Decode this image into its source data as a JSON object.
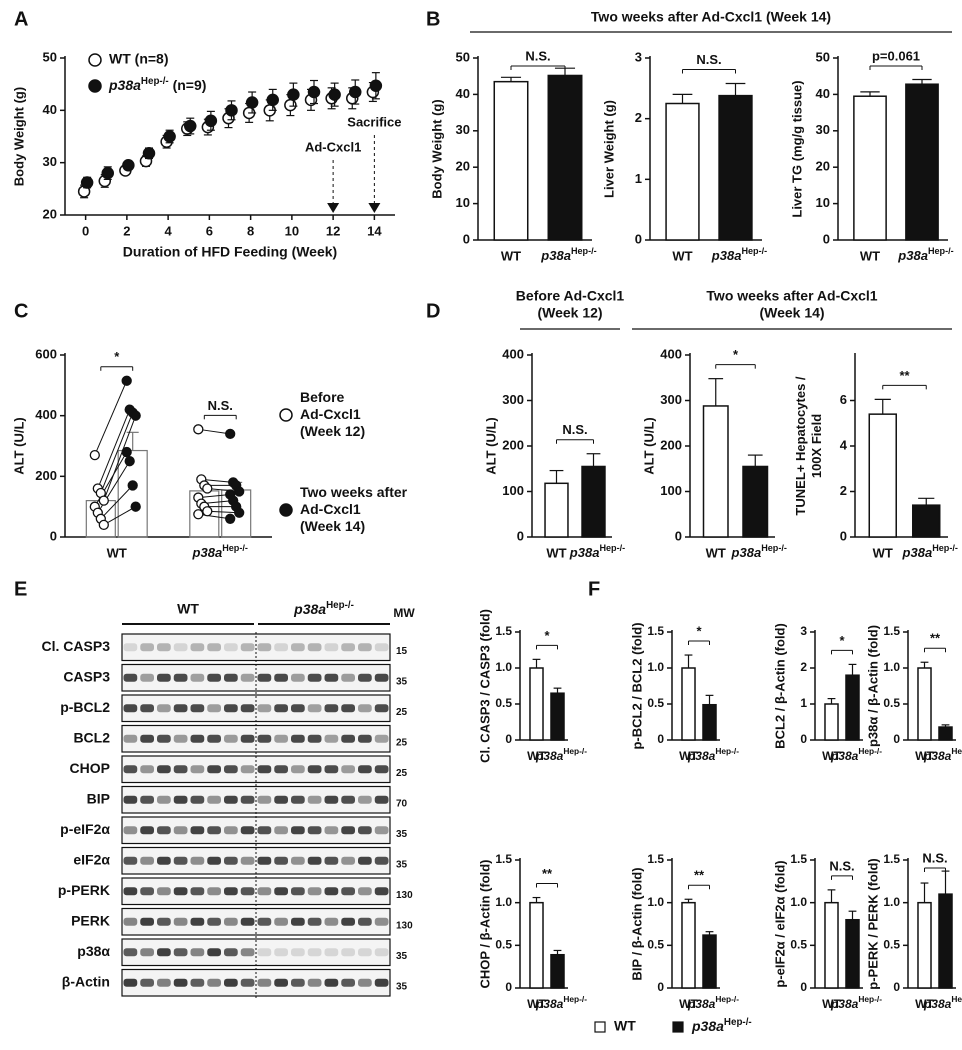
{
  "chart_data": [
    {
      "type": "line",
      "panel": "A",
      "xlabel": "Duration of HFD Feeding (Week)",
      "ylabel": "Body Weight (g)",
      "x": [
        0,
        1,
        2,
        3,
        4,
        5,
        6,
        7,
        8,
        9,
        10,
        11,
        12,
        13,
        14
      ],
      "xlim": [
        -1,
        15
      ],
      "xticks": [
        0,
        2,
        4,
        6,
        8,
        10,
        12,
        14
      ],
      "ylim": [
        20,
        50
      ],
      "yticks": [
        20,
        30,
        40,
        50
      ],
      "series": [
        {
          "name": "WT (n=8)",
          "color": "#ffffff",
          "values": [
            24.5,
            26.5,
            28.5,
            30.3,
            34,
            36.5,
            36.8,
            38.5,
            39.5,
            40,
            41,
            42,
            42.3,
            42.3,
            43.5
          ],
          "errors": [
            1.2,
            1.2,
            0.8,
            1,
            1.2,
            1.3,
            1.5,
            1.8,
            1.8,
            2,
            2,
            2,
            2,
            2,
            1.8
          ]
        },
        {
          "name": {
            "text": "p38a",
            "sup": "Hep-/-",
            "rest": " (n=9)"
          },
          "color": "#111111",
          "values": [
            26.2,
            28,
            29.5,
            31.8,
            35,
            37,
            38,
            40,
            41.5,
            42,
            43,
            43.5,
            43,
            43.5,
            44.7
          ],
          "errors": [
            1,
            1.2,
            0.8,
            1,
            1.2,
            1.5,
            1.8,
            1.8,
            2,
            2,
            2.2,
            2.2,
            2.2,
            2.3,
            2.5
          ]
        }
      ],
      "markers": [
        {
          "x": 12,
          "label": "Ad-Cxcl1"
        },
        {
          "x": 14,
          "label": "Sacrifice"
        }
      ]
    },
    {
      "type": "bar",
      "panel": "B",
      "group_title": "Two weeks after Ad-Cxcl1 (Week 14)",
      "ylabel": "Body Weight (g)",
      "categories": [
        "WT",
        {
          "text": "p38a",
          "sup": "Hep-/-"
        }
      ],
      "colors": [
        "#ffffff",
        "#111111"
      ],
      "values": [
        43.5,
        45.2
      ],
      "errors": [
        1.2,
        2
      ],
      "ylim": [
        0,
        50
      ],
      "yticks": [
        0,
        10,
        20,
        30,
        40,
        50
      ],
      "annotation": "N.S."
    },
    {
      "type": "bar",
      "ylabel": "Liver Weight (g)",
      "categories": [
        "WT",
        {
          "text": "p38a",
          "sup": "Hep-/-"
        }
      ],
      "colors": [
        "#ffffff",
        "#111111"
      ],
      "values": [
        2.25,
        2.38
      ],
      "errors": [
        0.15,
        0.2
      ],
      "ylim": [
        0,
        3
      ],
      "yticks": [
        0,
        1,
        2,
        3
      ],
      "annotation": "N.S."
    },
    {
      "type": "bar",
      "ylabel": "Liver TG (mg/g tissue)",
      "categories": [
        "WT",
        {
          "text": "p38a",
          "sup": "Hep-/-"
        }
      ],
      "colors": [
        "#ffffff",
        "#111111"
      ],
      "values": [
        39.5,
        42.8
      ],
      "errors": [
        1.2,
        1.3
      ],
      "ylim": [
        0,
        50
      ],
      "yticks": [
        0,
        10,
        20,
        30,
        40,
        50
      ],
      "annotation": "p=0.061"
    },
    {
      "type": "paired",
      "panel": "C",
      "ylabel": "ALT (U/L)",
      "categories": [
        "WT",
        {
          "text": "p38a",
          "sup": "Hep-/-"
        }
      ],
      "ylim": [
        0,
        600
      ],
      "yticks": [
        0,
        200,
        400,
        600
      ],
      "series": [
        {
          "name": [
            "Before",
            "Ad-Cxcl1",
            "(Week 12)"
          ],
          "color": "#ffffff",
          "values": [
            120,
            152
          ],
          "points": [
            [
              270,
              160,
              145,
              120,
              100,
              80,
              60,
              40
            ],
            [
              355,
              190,
              170,
              160,
              130,
              110,
              100,
              85,
              75
            ]
          ]
        },
        {
          "name": [
            "Two weeks after",
            "Ad-Cxcl1",
            "(Week 14)"
          ],
          "color": "#111111",
          "values": [
            285,
            155
          ],
          "errors": [
            60,
            25
          ],
          "points": [
            [
              515,
              420,
              410,
              400,
              280,
              250,
              170,
              100
            ],
            [
              340,
              180,
              170,
              150,
              140,
              120,
              100,
              80,
              60
            ]
          ]
        }
      ],
      "annotations": [
        "*",
        "N.S."
      ]
    },
    {
      "type": "bar",
      "panel": "D",
      "group_title": [
        "Before Ad-Cxcl1",
        "(Week 12)"
      ],
      "ylabel": "ALT (U/L)",
      "categories": [
        "WT",
        {
          "text": "p38a",
          "sup": "Hep-/-"
        }
      ],
      "colors": [
        "#ffffff",
        "#111111"
      ],
      "values": [
        118,
        155
      ],
      "errors": [
        28,
        28
      ],
      "ylim": [
        0,
        400
      ],
      "yticks": [
        0,
        100,
        200,
        300,
        400
      ],
      "annotation": "N.S."
    },
    {
      "type": "bar",
      "group_title": [
        "Two weeks after Ad-Cxcl1",
        "(Week 14)"
      ],
      "ylabel": "ALT (U/L)",
      "categories": [
        "WT",
        {
          "text": "p38a",
          "sup": "Hep-/-"
        }
      ],
      "colors": [
        "#ffffff",
        "#111111"
      ],
      "values": [
        288,
        155
      ],
      "errors": [
        60,
        25
      ],
      "ylim": [
        0,
        400
      ],
      "yticks": [
        0,
        100,
        200,
        300,
        400
      ],
      "annotation": "*"
    },
    {
      "type": "bar",
      "ylabel": [
        "TUNEL+ Hepatocytes /",
        "100X Field"
      ],
      "categories": [
        "WT",
        {
          "text": "p38a",
          "sup": "Hep-/-"
        }
      ],
      "colors": [
        "#ffffff",
        "#111111"
      ],
      "values": [
        5.4,
        1.4
      ],
      "errors": [
        0.65,
        0.3
      ],
      "ylim": [
        0,
        8
      ],
      "yticks": [
        0,
        2,
        4,
        6
      ],
      "annotation": "**"
    },
    {
      "type": "blot",
      "panel": "E",
      "groups": [
        "WT",
        {
          "text": "p38a",
          "sup": "Hep-/-"
        }
      ],
      "mw_label": "MW",
      "rows": [
        {
          "label": "Cl. CASP3",
          "mw": "15"
        },
        {
          "label": "CASP3",
          "mw": "35"
        },
        {
          "label": "p-BCL2",
          "mw": "25"
        },
        {
          "label": "BCL2",
          "mw": "25"
        },
        {
          "label": "CHOP",
          "mw": "25"
        },
        {
          "label": "BIP",
          "mw": "70"
        },
        {
          "label": "p-eIF2α",
          "mw": "35"
        },
        {
          "label": "eIF2α",
          "mw": "35"
        },
        {
          "label": "p-PERK",
          "mw": "130"
        },
        {
          "label": "PERK",
          "mw": "130"
        },
        {
          "label": "p38α",
          "mw": "35"
        },
        {
          "label": "β-Actin",
          "mw": "35"
        }
      ]
    },
    {
      "type": "bar",
      "panel": "F",
      "ylabel": "Cl. CASP3 / CASP3 (fold)",
      "categories": [
        "WT",
        {
          "text": "p38a",
          "sup": "Hep-/-"
        }
      ],
      "colors": [
        "#ffffff",
        "#111111"
      ],
      "values": [
        1.0,
        0.65
      ],
      "errors": [
        0.12,
        0.07
      ],
      "ylim": [
        0,
        1.5
      ],
      "yticks": [
        0,
        0.5,
        {
          "value": 1,
          "label": "1.0"
        },
        1.5
      ],
      "annotation": "*",
      "legend": [
        {
          "name": "WT",
          "color": "#ffffff"
        },
        {
          "name": {
            "text": "p38a",
            "sup": "Hep-/-"
          },
          "color": "#111111"
        }
      ]
    },
    {
      "type": "bar",
      "ylabel": "p-BCL2 / BCL2 (fold)",
      "categories": [
        "WT",
        {
          "text": "p38a",
          "sup": "Hep-/-"
        }
      ],
      "colors": [
        "#ffffff",
        "#111111"
      ],
      "values": [
        1.0,
        0.49
      ],
      "errors": [
        0.18,
        0.13
      ],
      "ylim": [
        0,
        1.5
      ],
      "yticks": [
        0,
        0.5,
        {
          "value": 1,
          "label": "1.0"
        },
        1.5
      ],
      "annotation": "*"
    },
    {
      "type": "bar",
      "ylabel": "BCL2 / β-Actin (fold)",
      "categories": [
        "WT",
        {
          "text": "p38a",
          "sup": "Hep-/-"
        }
      ],
      "colors": [
        "#ffffff",
        "#111111"
      ],
      "values": [
        1.0,
        1.8
      ],
      "errors": [
        0.15,
        0.3
      ],
      "ylim": [
        0,
        3
      ],
      "yticks": [
        0,
        1,
        2,
        3
      ],
      "annotation": "*"
    },
    {
      "type": "bar",
      "ylabel": "p38α / β-Actin (fold)",
      "categories": [
        "WT",
        {
          "text": "p38a",
          "sup": "Hep-/-"
        }
      ],
      "colors": [
        "#ffffff",
        "#111111"
      ],
      "values": [
        1.0,
        0.18
      ],
      "errors": [
        0.08,
        0.03
      ],
      "ylim": [
        0,
        1.5
      ],
      "yticks": [
        0,
        0.5,
        {
          "value": 1,
          "label": "1.0"
        },
        1.5
      ],
      "annotation": "**"
    },
    {
      "type": "bar",
      "ylabel": "CHOP / β-Actin (fold)",
      "categories": [
        "WT",
        {
          "text": "p38a",
          "sup": "Hep-/-"
        }
      ],
      "colors": [
        "#ffffff",
        "#111111"
      ],
      "values": [
        1.0,
        0.39
      ],
      "errors": [
        0.06,
        0.05
      ],
      "ylim": [
        0,
        1.5
      ],
      "yticks": [
        0,
        0.5,
        {
          "value": 1,
          "label": "1.0"
        },
        1.5
      ],
      "annotation": "**"
    },
    {
      "type": "bar",
      "ylabel": "BIP / β-Actin (fold)",
      "categories": [
        "WT",
        {
          "text": "p38a",
          "sup": "Hep-/-"
        }
      ],
      "colors": [
        "#ffffff",
        "#111111"
      ],
      "values": [
        1.0,
        0.62
      ],
      "errors": [
        0.04,
        0.04
      ],
      "ylim": [
        0,
        1.5
      ],
      "yticks": [
        0,
        0.5,
        {
          "value": 1,
          "label": "1.0"
        },
        1.5
      ],
      "annotation": "**"
    },
    {
      "type": "bar",
      "ylabel": "p-eIF2α / eIF2α (fold)",
      "categories": [
        "WT",
        {
          "text": "p38a",
          "sup": "Hep-/-"
        }
      ],
      "colors": [
        "#ffffff",
        "#111111"
      ],
      "values": [
        1.0,
        0.8
      ],
      "errors": [
        0.15,
        0.1
      ],
      "ylim": [
        0,
        1.5
      ],
      "yticks": [
        0,
        0.5,
        {
          "value": 1,
          "label": "1.0"
        },
        1.5
      ],
      "annotation": "N.S."
    },
    {
      "type": "bar",
      "ylabel": "p-PERK / PERK (fold)",
      "categories": [
        "WT",
        {
          "text": "p38a",
          "sup": "Hep-/-"
        }
      ],
      "colors": [
        "#ffffff",
        "#111111"
      ],
      "values": [
        1.0,
        1.1
      ],
      "errors": [
        0.23,
        0.27
      ],
      "ylim": [
        0,
        1.5
      ],
      "yticks": [
        0,
        0.5,
        {
          "value": 1,
          "label": "1.0"
        },
        1.5
      ],
      "annotation": "N.S."
    }
  ]
}
